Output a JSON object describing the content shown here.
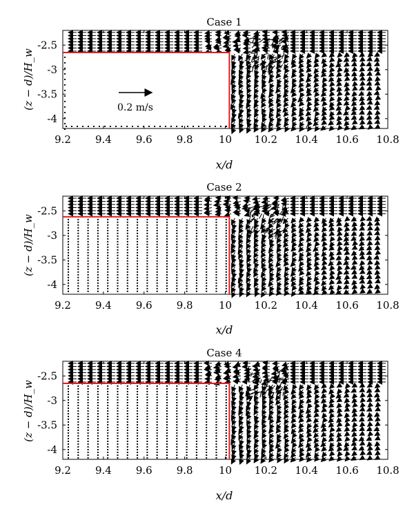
{
  "colors": {
    "region_outline": "#e31a1c",
    "arrow": "#000000",
    "axes": "#000000"
  },
  "chart_data": [
    {
      "type": "quiver",
      "title": "Case 1",
      "xlabel": "x/d",
      "ylabel": "(z − d)/H_w",
      "xlim": [
        9.2,
        10.8
      ],
      "ylim": [
        -4.2,
        -2.2
      ],
      "xticks": [
        "9.2",
        "9.4",
        "9.6",
        "9.8",
        "10",
        "10.2",
        "10.4",
        "10.6",
        "10.8"
      ],
      "yticks": [
        "-2.5",
        "-3",
        "-3.5",
        "-4"
      ],
      "region": {
        "x": [
          9.2,
          10.02
        ],
        "z_top": -2.65
      },
      "scale_label": "0.2 m/s",
      "inside_columns": false
    },
    {
      "type": "quiver",
      "title": "Case 2",
      "xlabel": "x/d",
      "ylabel": "(z − d)/H_w",
      "xlim": [
        9.2,
        10.8
      ],
      "ylim": [
        -4.2,
        -2.2
      ],
      "xticks": [
        "9.2",
        "9.4",
        "9.6",
        "9.8",
        "10",
        "10.2",
        "10.4",
        "10.6",
        "10.8"
      ],
      "yticks": [
        "-2.5",
        "-3",
        "-3.5",
        "-4"
      ],
      "region": {
        "x": [
          9.2,
          10.02
        ],
        "z_top": -2.62
      },
      "inside_columns": true
    },
    {
      "type": "quiver",
      "title": "Case 4",
      "xlabel": "x/d",
      "ylabel": "(z − d)/H_w",
      "xlim": [
        9.2,
        10.8
      ],
      "ylim": [
        -4.2,
        -2.2
      ],
      "xticks": [
        "9.2",
        "9.4",
        "9.6",
        "9.8",
        "10",
        "10.2",
        "10.4",
        "10.6",
        "10.8"
      ],
      "yticks": [
        "-2.5",
        "-3",
        "-3.5",
        "-4"
      ],
      "region": {
        "x": [
          9.2,
          10.02
        ],
        "z_top": -2.65
      },
      "inside_columns": true
    }
  ]
}
